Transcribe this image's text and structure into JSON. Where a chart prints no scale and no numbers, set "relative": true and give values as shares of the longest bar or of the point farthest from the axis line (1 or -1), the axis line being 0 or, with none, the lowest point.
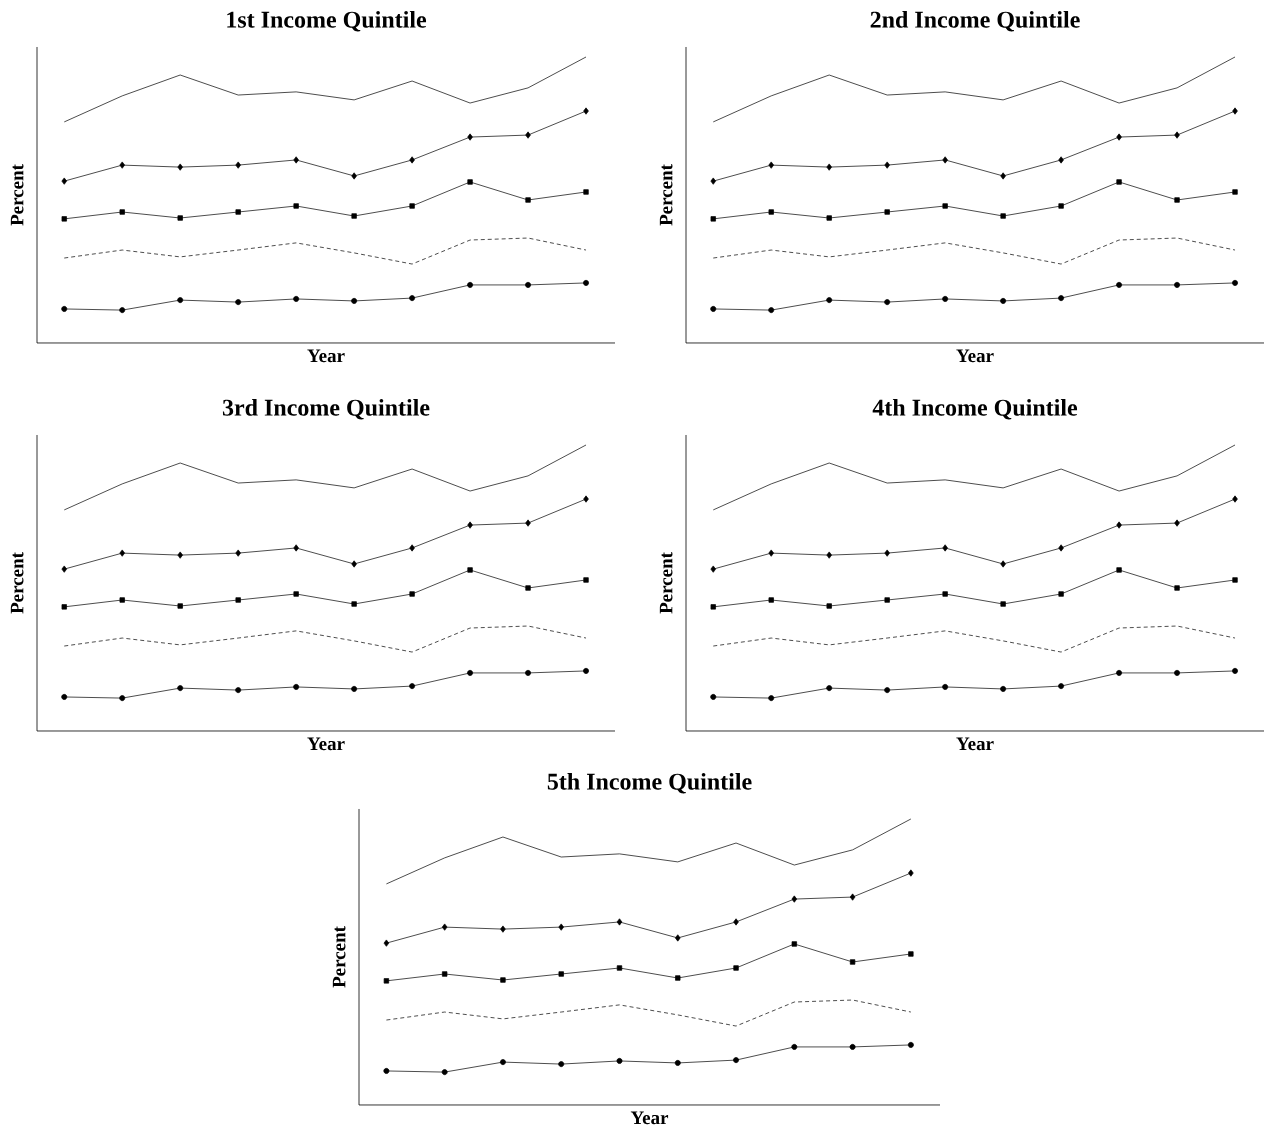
{
  "chart_data": [
    {
      "type": "line",
      "title": "1st Income Quintile",
      "xlabel": "Year",
      "ylabel": "Percent",
      "relative": true,
      "tick_labels": false,
      "categories": [
        null,
        null,
        null,
        null,
        null,
        null,
        null,
        null,
        null,
        null
      ],
      "series": [
        {
          "color": "#000000",
          "marker": "none",
          "line_style": "solid",
          "values": [
            0.773,
            0.864,
            0.937,
            0.867,
            0.878,
            0.85,
            0.916,
            0.839,
            0.892,
            1
          ]
        },
        {
          "color": "#000000",
          "marker": "diamond",
          "line_style": "solid",
          "values": [
            0.566,
            0.622,
            0.615,
            0.622,
            0.64,
            0.584,
            0.64,
            0.72,
            0.727,
            0.811
          ]
        },
        {
          "color": "#000000",
          "marker": "square",
          "line_style": "solid",
          "values": [
            0.434,
            0.458,
            0.437,
            0.458,
            0.479,
            0.444,
            0.479,
            0.563,
            0.5,
            0.528
          ]
        },
        {
          "color": "#000000",
          "marker": "none",
          "line_style": "dashed",
          "values": [
            0.297,
            0.325,
            0.301,
            0.325,
            0.35,
            0.315,
            0.276,
            0.36,
            0.367,
            0.325
          ]
        },
        {
          "color": "#000000",
          "marker": "circle",
          "line_style": "solid",
          "values": [
            0.119,
            0.115,
            0.15,
            0.143,
            0.154,
            0.147,
            0.157,
            0.203,
            0.203,
            0.21
          ]
        }
      ]
    },
    {
      "type": "line",
      "title": "2nd Income Quintile",
      "xlabel": "Year",
      "ylabel": "Percent",
      "relative": true,
      "tick_labels": false,
      "categories": [
        null,
        null,
        null,
        null,
        null,
        null,
        null,
        null,
        null,
        null
      ],
      "series": [
        {
          "color": "#000000",
          "marker": "none",
          "line_style": "solid",
          "values": [
            0.773,
            0.864,
            0.937,
            0.867,
            0.878,
            0.85,
            0.916,
            0.839,
            0.892,
            1
          ]
        },
        {
          "color": "#000000",
          "marker": "diamond",
          "line_style": "solid",
          "values": [
            0.566,
            0.622,
            0.615,
            0.622,
            0.64,
            0.584,
            0.64,
            0.72,
            0.727,
            0.811
          ]
        },
        {
          "color": "#000000",
          "marker": "square",
          "line_style": "solid",
          "values": [
            0.434,
            0.458,
            0.437,
            0.458,
            0.479,
            0.444,
            0.479,
            0.563,
            0.5,
            0.528
          ]
        },
        {
          "color": "#000000",
          "marker": "none",
          "line_style": "dashed",
          "values": [
            0.297,
            0.325,
            0.301,
            0.325,
            0.35,
            0.315,
            0.276,
            0.36,
            0.367,
            0.325
          ]
        },
        {
          "color": "#000000",
          "marker": "circle",
          "line_style": "solid",
          "values": [
            0.119,
            0.115,
            0.15,
            0.143,
            0.154,
            0.147,
            0.157,
            0.203,
            0.203,
            0.21
          ]
        }
      ]
    },
    {
      "type": "line",
      "title": "3rd Income Quintile",
      "xlabel": "Year",
      "ylabel": "Percent",
      "relative": true,
      "tick_labels": false,
      "categories": [
        null,
        null,
        null,
        null,
        null,
        null,
        null,
        null,
        null,
        null
      ],
      "series": [
        {
          "color": "#000000",
          "marker": "none",
          "line_style": "solid",
          "values": [
            0.773,
            0.864,
            0.937,
            0.867,
            0.878,
            0.85,
            0.916,
            0.839,
            0.892,
            1
          ]
        },
        {
          "color": "#000000",
          "marker": "diamond",
          "line_style": "solid",
          "values": [
            0.566,
            0.622,
            0.615,
            0.622,
            0.64,
            0.584,
            0.64,
            0.72,
            0.727,
            0.811
          ]
        },
        {
          "color": "#000000",
          "marker": "square",
          "line_style": "solid",
          "values": [
            0.434,
            0.458,
            0.437,
            0.458,
            0.479,
            0.444,
            0.479,
            0.563,
            0.5,
            0.528
          ]
        },
        {
          "color": "#000000",
          "marker": "none",
          "line_style": "dashed",
          "values": [
            0.297,
            0.325,
            0.301,
            0.325,
            0.35,
            0.315,
            0.276,
            0.36,
            0.367,
            0.325
          ]
        },
        {
          "color": "#000000",
          "marker": "circle",
          "line_style": "solid",
          "values": [
            0.119,
            0.115,
            0.15,
            0.143,
            0.154,
            0.147,
            0.157,
            0.203,
            0.203,
            0.21
          ]
        }
      ]
    },
    {
      "type": "line",
      "title": "4th Income Quintile",
      "xlabel": "Year",
      "ylabel": "Percent",
      "relative": true,
      "tick_labels": false,
      "categories": [
        null,
        null,
        null,
        null,
        null,
        null,
        null,
        null,
        null,
        null
      ],
      "series": [
        {
          "color": "#000000",
          "marker": "none",
          "line_style": "solid",
          "values": [
            0.773,
            0.864,
            0.937,
            0.867,
            0.878,
            0.85,
            0.916,
            0.839,
            0.892,
            1
          ]
        },
        {
          "color": "#000000",
          "marker": "diamond",
          "line_style": "solid",
          "values": [
            0.566,
            0.622,
            0.615,
            0.622,
            0.64,
            0.584,
            0.64,
            0.72,
            0.727,
            0.811
          ]
        },
        {
          "color": "#000000",
          "marker": "square",
          "line_style": "solid",
          "values": [
            0.434,
            0.458,
            0.437,
            0.458,
            0.479,
            0.444,
            0.479,
            0.563,
            0.5,
            0.528
          ]
        },
        {
          "color": "#000000",
          "marker": "none",
          "line_style": "dashed",
          "values": [
            0.297,
            0.325,
            0.301,
            0.325,
            0.35,
            0.315,
            0.276,
            0.36,
            0.367,
            0.325
          ]
        },
        {
          "color": "#000000",
          "marker": "circle",
          "line_style": "solid",
          "values": [
            0.119,
            0.115,
            0.15,
            0.143,
            0.154,
            0.147,
            0.157,
            0.203,
            0.203,
            0.21
          ]
        }
      ]
    },
    {
      "type": "line",
      "title": "5th Income Quintile",
      "xlabel": "Year",
      "ylabel": "Percent",
      "relative": true,
      "tick_labels": false,
      "categories": [
        null,
        null,
        null,
        null,
        null,
        null,
        null,
        null,
        null,
        null
      ],
      "series": [
        {
          "color": "#000000",
          "marker": "none",
          "line_style": "solid",
          "values": [
            0.773,
            0.864,
            0.937,
            0.867,
            0.878,
            0.85,
            0.916,
            0.839,
            0.892,
            1
          ]
        },
        {
          "color": "#000000",
          "marker": "diamond",
          "line_style": "solid",
          "values": [
            0.566,
            0.622,
            0.615,
            0.622,
            0.64,
            0.584,
            0.64,
            0.72,
            0.727,
            0.811
          ]
        },
        {
          "color": "#000000",
          "marker": "square",
          "line_style": "solid",
          "values": [
            0.434,
            0.458,
            0.437,
            0.458,
            0.479,
            0.444,
            0.479,
            0.563,
            0.5,
            0.528
          ]
        },
        {
          "color": "#000000",
          "marker": "none",
          "line_style": "dashed",
          "values": [
            0.297,
            0.325,
            0.301,
            0.325,
            0.35,
            0.315,
            0.276,
            0.36,
            0.367,
            0.325
          ]
        },
        {
          "color": "#000000",
          "marker": "circle",
          "line_style": "solid",
          "values": [
            0.119,
            0.115,
            0.15,
            0.143,
            0.154,
            0.147,
            0.157,
            0.203,
            0.203,
            0.21
          ]
        }
      ]
    }
  ]
}
